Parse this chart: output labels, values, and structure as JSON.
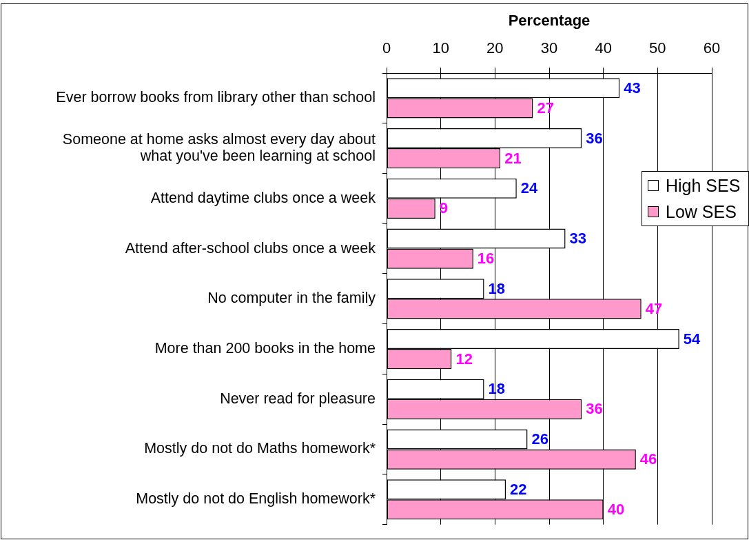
{
  "chart_data": {
    "type": "bar",
    "orientation": "horizontal",
    "xlabel": "Percentage",
    "categories": [
      "Ever borrow books from library other than school",
      "Someone at home asks almost every day about what you've been learning at school",
      "Attend daytime clubs once a week",
      "Attend after-school clubs once a week",
      "No computer in the family",
      "More than 200 books in the home",
      "Never read for pleasure",
      "Mostly do not do Maths homework*",
      "Mostly do not do English homework*"
    ],
    "series": [
      {
        "name": "High SES",
        "color": "#ffffff",
        "values": [
          43,
          36,
          24,
          33,
          18,
          54,
          18,
          26,
          22
        ]
      },
      {
        "name": "Low SES",
        "color": "#ff99cc",
        "values": [
          27,
          21,
          9,
          16,
          47,
          12,
          36,
          46,
          40
        ]
      }
    ],
    "xlim": [
      0,
      60
    ],
    "xticks": [
      0,
      10,
      20,
      30,
      40,
      50,
      60
    ],
    "grid": "x",
    "legend": "right",
    "data_labels": true
  }
}
